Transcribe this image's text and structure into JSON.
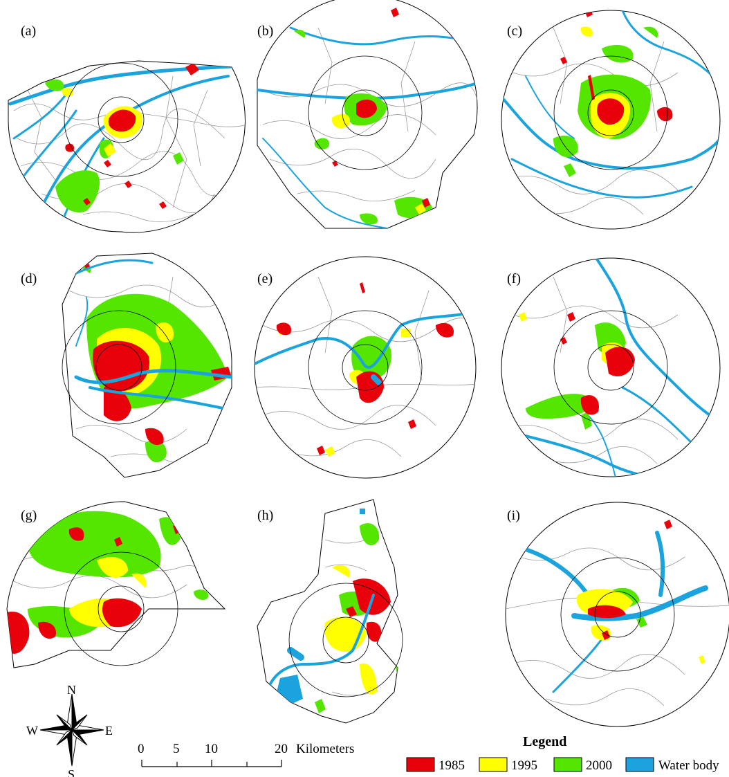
{
  "panels": [
    {
      "label": "(a)"
    },
    {
      "label": "(b)"
    },
    {
      "label": "(c)"
    },
    {
      "label": "(d)"
    },
    {
      "label": "(e)"
    },
    {
      "label": "(f)"
    },
    {
      "label": "(g)"
    },
    {
      "label": "(h)"
    },
    {
      "label": "(i)"
    }
  ],
  "legend": {
    "title": "Legend",
    "items": [
      {
        "label": "1985",
        "color": "#e8000b"
      },
      {
        "label": "1995",
        "color": "#ffff00"
      },
      {
        "label": "2000",
        "color": "#55e600"
      },
      {
        "label": "Water body",
        "color": "#1aa3dc"
      }
    ]
  },
  "scale_bar": {
    "ticks": [
      "0",
      "5",
      "10",
      "20"
    ],
    "unit": "Kilometers"
  },
  "compass": {
    "n": "N",
    "s": "S",
    "e": "E",
    "w": "W"
  }
}
